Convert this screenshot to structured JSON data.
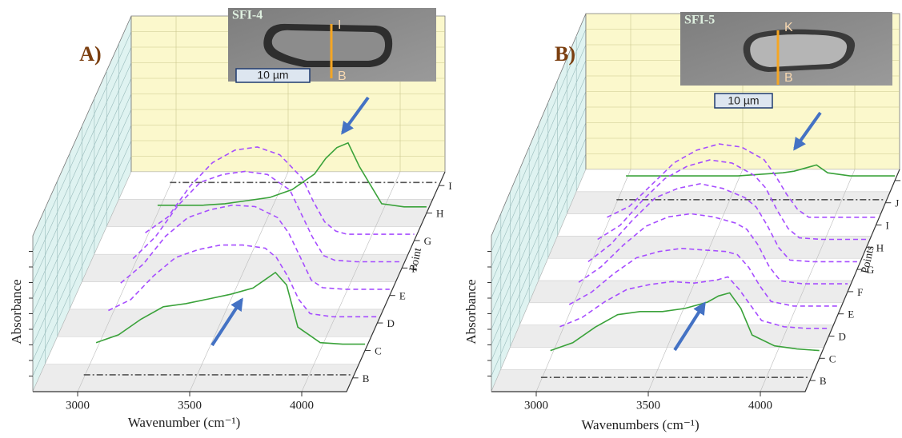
{
  "chart_data": [
    {
      "type": "waterfall3d",
      "panel_label": "A)",
      "inset": {
        "title": "SFI-4",
        "top_label": "I",
        "bottom_label": "B",
        "scale_bar": "10 µm"
      },
      "x_label": "Wavenumber (cm⁻¹)",
      "y_label": "Absorbance",
      "depth_label": "Point",
      "xlim": [
        2800,
        4200
      ],
      "xticks": [
        3000,
        3500,
        4000
      ],
      "ylim": [
        0,
        1
      ],
      "x": [
        3000,
        3100,
        3200,
        3300,
        3400,
        3500,
        3600,
        3700,
        3750,
        3800,
        3850,
        3900,
        4000,
        4100,
        4200
      ],
      "categories": [
        "B",
        "C",
        "D",
        "E",
        "F",
        "G",
        "H",
        "I"
      ],
      "series": [
        {
          "color": "#555555",
          "dash": "dashdot",
          "values": [
            0.02,
            0.02,
            0.02,
            0.02,
            0.02,
            0.02,
            0.02,
            0.02,
            0.02,
            0.02,
            0.02,
            0.02,
            0.02,
            0.02,
            0.02
          ]
        },
        {
          "color": "#3aa23a",
          "dash": "solid",
          "values": [
            0.05,
            0.1,
            0.2,
            0.28,
            0.3,
            0.33,
            0.36,
            0.4,
            0.45,
            0.5,
            0.42,
            0.15,
            0.05,
            0.04,
            0.04
          ]
        },
        {
          "color": "#a64dff",
          "dash": "dashed",
          "values": [
            0.08,
            0.15,
            0.3,
            0.42,
            0.47,
            0.5,
            0.5,
            0.48,
            0.42,
            0.3,
            0.15,
            0.06,
            0.04,
            0.04,
            0.04
          ]
        },
        {
          "color": "#a64dff",
          "dash": "dashed",
          "values": [
            0.08,
            0.2,
            0.38,
            0.5,
            0.55,
            0.58,
            0.57,
            0.5,
            0.4,
            0.25,
            0.1,
            0.05,
            0.04,
            0.04,
            0.04
          ]
        },
        {
          "color": "#a64dff",
          "dash": "dashed",
          "values": [
            0.06,
            0.2,
            0.4,
            0.55,
            0.6,
            0.62,
            0.6,
            0.5,
            0.35,
            0.2,
            0.08,
            0.05,
            0.04,
            0.04,
            0.04
          ]
        },
        {
          "color": "#a64dff",
          "dash": "dashed",
          "values": [
            0.05,
            0.15,
            0.35,
            0.5,
            0.58,
            0.6,
            0.55,
            0.4,
            0.25,
            0.12,
            0.06,
            0.04,
            0.04,
            0.04,
            0.04
          ]
        },
        {
          "color": "#3aa23a",
          "dash": "solid",
          "values": [
            0.05,
            0.05,
            0.05,
            0.06,
            0.08,
            0.1,
            0.15,
            0.25,
            0.35,
            0.42,
            0.45,
            0.3,
            0.06,
            0.04,
            0.04
          ]
        },
        {
          "color": "#555555",
          "dash": "dashdot",
          "values": [
            0.02,
            0.02,
            0.02,
            0.02,
            0.02,
            0.02,
            0.02,
            0.02,
            0.02,
            0.02,
            0.02,
            0.02,
            0.02,
            0.02,
            0.02
          ]
        }
      ]
    },
    {
      "type": "waterfall3d",
      "panel_label": "B)",
      "inset": {
        "title": "SFI-5",
        "top_label": "K",
        "bottom_label": "B",
        "scale_bar": "10 µm"
      },
      "x_label": "Wavenumbers (cm⁻¹)",
      "y_label": "Absorbance",
      "depth_label": "Points",
      "xlim": [
        2800,
        4200
      ],
      "xticks": [
        3000,
        3500,
        4000
      ],
      "ylim": [
        0,
        1
      ],
      "x": [
        3000,
        3100,
        3200,
        3300,
        3400,
        3500,
        3600,
        3700,
        3750,
        3800,
        3850,
        3900,
        4000,
        4100,
        4200
      ],
      "categories": [
        "B",
        "C",
        "D",
        "E",
        "F",
        "G",
        "H",
        "I",
        "J",
        "K"
      ],
      "series": [
        {
          "color": "#555555",
          "dash": "dashdot",
          "values": [
            0.02,
            0.02,
            0.02,
            0.02,
            0.02,
            0.02,
            0.02,
            0.02,
            0.02,
            0.02,
            0.02,
            0.02,
            0.02,
            0.02,
            0.02
          ]
        },
        {
          "color": "#3aa23a",
          "dash": "solid",
          "values": [
            0.05,
            0.1,
            0.2,
            0.28,
            0.3,
            0.3,
            0.32,
            0.36,
            0.4,
            0.42,
            0.32,
            0.15,
            0.08,
            0.06,
            0.05
          ]
        },
        {
          "color": "#a64dff",
          "dash": "dashed",
          "values": [
            0.06,
            0.12,
            0.22,
            0.3,
            0.33,
            0.35,
            0.34,
            0.36,
            0.38,
            0.3,
            0.2,
            0.1,
            0.06,
            0.05,
            0.05
          ]
        },
        {
          "color": "#a64dff",
          "dash": "dashed",
          "values": [
            0.06,
            0.14,
            0.26,
            0.36,
            0.4,
            0.42,
            0.41,
            0.4,
            0.38,
            0.3,
            0.18,
            0.08,
            0.05,
            0.05,
            0.05
          ]
        },
        {
          "color": "#a64dff",
          "dash": "dashed",
          "values": [
            0.06,
            0.16,
            0.3,
            0.42,
            0.48,
            0.5,
            0.48,
            0.44,
            0.4,
            0.3,
            0.16,
            0.07,
            0.05,
            0.05,
            0.05
          ]
        },
        {
          "color": "#a64dff",
          "dash": "dashed",
          "values": [
            0.05,
            0.16,
            0.32,
            0.46,
            0.52,
            0.55,
            0.52,
            0.46,
            0.4,
            0.28,
            0.14,
            0.06,
            0.05,
            0.05,
            0.05
          ]
        },
        {
          "color": "#a64dff",
          "dash": "dashed",
          "values": [
            0.05,
            0.14,
            0.3,
            0.44,
            0.52,
            0.56,
            0.54,
            0.46,
            0.38,
            0.24,
            0.12,
            0.06,
            0.05,
            0.05,
            0.05
          ]
        },
        {
          "color": "#a64dff",
          "dash": "dashed",
          "values": [
            0.05,
            0.12,
            0.26,
            0.4,
            0.48,
            0.52,
            0.5,
            0.42,
            0.32,
            0.2,
            0.1,
            0.05,
            0.05,
            0.05,
            0.05
          ]
        },
        {
          "color": "#555555",
          "dash": "dashdot",
          "values": [
            0.02,
            0.02,
            0.02,
            0.02,
            0.02,
            0.02,
            0.02,
            0.02,
            0.02,
            0.02,
            0.02,
            0.02,
            0.02,
            0.02,
            0.02
          ]
        },
        {
          "color": "#3aa23a",
          "dash": "solid",
          "values": [
            0.03,
            0.03,
            0.03,
            0.03,
            0.03,
            0.03,
            0.04,
            0.05,
            0.06,
            0.08,
            0.1,
            0.05,
            0.03,
            0.03,
            0.03
          ]
        }
      ]
    }
  ]
}
